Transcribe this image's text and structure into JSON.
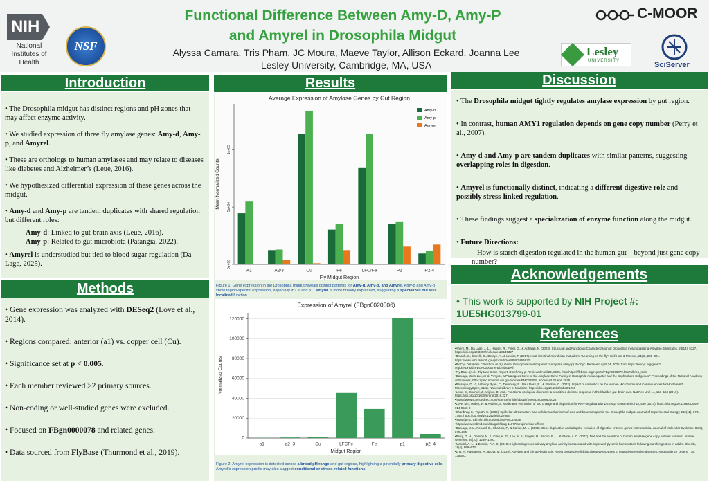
{
  "header": {
    "title": "Functional Difference Between Amy-D, Amy-P and Amyrel in Drosophila Midgut",
    "authors": "Alyssa Camara, Tris Pham, JC Moura, Maeve Taylor, Allison Eckard, Joanna Lee",
    "affiliation": "Lesley University, Cambridge, MA, USA",
    "logos": {
      "nih": "NIH",
      "nih_name": "National Institutes of Health",
      "nsf": "NSF",
      "cmoor": "C-MOOR",
      "lesley": "Lesley",
      "lesley_sub": "UNIVERSITY",
      "sciserver": "SciServer"
    }
  },
  "introduction": {
    "heading": "Introduction",
    "items": [
      "The Drosophila midgut has distinct regions and pH zones that may affect enzyme activity.",
      [
        "We studied expression of three fly amylase genes: ",
        {
          "bold": "Amy-d"
        },
        ", ",
        {
          "bold": "Amy-p"
        },
        ", and ",
        {
          "bold": "Amyrel"
        },
        "."
      ],
      "These are orthologs to human amylases and may relate to diseases like diabetes and Alzheimer’s (Leue, 2016).",
      "We hypothesized differential expression of these genes across the midgut.",
      [
        {
          "bold": "Amy-d"
        },
        " and ",
        {
          "bold": "Amy-p"
        },
        " are tandem duplicates with shared regulation but different roles:"
      ],
      [
        {
          "bold": "Amyrel"
        },
        " is understudied but tied to blood sugar regulation (Da Lage, 2025)."
      ]
    ],
    "subitems": [
      [
        {
          "bold": "Amy-d"
        },
        ": Linked to gut-brain axis (Leue, 2016)."
      ],
      [
        {
          "bold": "Amy-p"
        },
        ": Related to gut microbiota (Patangia, 2022)."
      ]
    ]
  },
  "methods": {
    "heading": "Methods",
    "items": [
      [
        "Gene expression was analyzed with ",
        {
          "bold": "DESeq2"
        },
        " (Love et al., 2014)."
      ],
      "Regions compared: anterior (a1) vs. copper cell (Cu).",
      [
        "Significance set at ",
        {
          "bold": "p < 0.005"
        },
        "."
      ],
      "Each member reviewed ≥2 primary sources.",
      "Non-coding or well-studied genes were excluded.",
      [
        "Focused on ",
        {
          "bold": "FBgn0000078"
        },
        " and related genes."
      ],
      [
        "Data sourced from ",
        {
          "bold": "FlyBase"
        },
        " (Thurmond et al., 2019)."
      ]
    ]
  },
  "results": {
    "heading": "Results",
    "captions": [
      [
        "Figure 1. Gene expression in the Drosophila midgut reveals distinct patterns for ",
        {
          "bold": "Amy-d, Amy-p, and Amyrel"
        },
        ". Amy-d and Amy-p show region-specific expression, especially in Cu and a1. ",
        {
          "bold": "Amyrel"
        },
        " is more broadly expressed, suggesting a ",
        {
          "bold": "specialized but less localized"
        },
        " function."
      ],
      [
        "Figure 2. Amyrel expression is detected across ",
        {
          "bold": "a broad pH range"
        },
        " and gut regions, highlighting a potentially ",
        {
          "bold": "primary digestive role"
        },
        ". Amyrel’s expression profile may also suggest ",
        {
          "bold": "conditional or stress-related functions"
        },
        "."
      ]
    ]
  },
  "chart_data": [
    {
      "type": "bar",
      "title": "Average Expression of Amylase Genes by Gut Region",
      "x_label": "Fly Midgut Region",
      "y_label": "Mean Normalized Counts",
      "categories": [
        "A1",
        "A2/3",
        "Cu",
        "Fe",
        "LFC/Fe",
        "P1",
        "P2-4"
      ],
      "series": [
        {
          "name": "Amy-d",
          "color": "#1b6b3a",
          "values": [
            44600,
            12500,
            114000,
            30400,
            84000,
            35100,
            9500
          ]
        },
        {
          "name": "Amy-p",
          "color": "#4cb050",
          "values": [
            54800,
            13000,
            134000,
            35100,
            114000,
            36900,
            11900
          ]
        },
        {
          "name": "Amyrel",
          "color": "#e8781e",
          "values": [
            500,
            4200,
            1000,
            12500,
            500,
            15500,
            17300
          ]
        }
      ],
      "ylim": [
        0,
        140000
      ],
      "yticks": [
        {
          "value": 0,
          "label": "0e+00"
        },
        {
          "value": 50000,
          "label": "5e+04"
        },
        {
          "value": 100000,
          "label": "1e+05"
        }
      ],
      "grid": false,
      "legend": "upper right"
    },
    {
      "type": "bar",
      "title": "Expression of Amyrel (FBgn0020506)",
      "x_label": "Midgut Region",
      "y_label": "Normalized Counts",
      "categories": [
        "a1",
        "a2_3",
        "Cu",
        "LFCFe",
        "Fe",
        "p1",
        "p2_4"
      ],
      "values": [
        200,
        600,
        800,
        45400,
        29300,
        121000,
        4200
      ],
      "color": "#3a9a5a",
      "ylim": [
        0,
        126000
      ],
      "yticks": [
        0,
        20000,
        40000,
        60000,
        80000,
        100000,
        120000
      ],
      "grid": true
    }
  ],
  "discussion": {
    "heading": "Discussion",
    "items": [
      [
        "The ",
        {
          "bold": "Drosophila midgut tightly regulates amylase expression"
        },
        " by gut region."
      ],
      [
        "In contrast, ",
        {
          "bold": "human AMY1 regulation depends on gene copy number"
        },
        " (Perry et al., 2007)."
      ],
      [
        {
          "bold": "Amy-d and Amy-p are tandem duplicates"
        },
        " with similar patterns, suggesting ",
        {
          "bold": "overlapping roles in digestion"
        },
        "."
      ],
      [
        {
          "bold": "Amyrel is functionally distinct"
        },
        ", indicating a ",
        {
          "bold": "different digestive role"
        },
        " and ",
        {
          "bold": "possibly stress-linked regulation"
        },
        "."
      ],
      [
        "These findings suggest a ",
        {
          "bold": "specialization of enzyme function"
        },
        " along the midgut."
      ],
      [
        {
          "bold": "Future Directions:"
        }
      ]
    ],
    "subitems": [
      "How is starch digestion regulated in the human gut—beyond just gene copy number?"
    ]
  },
  "acknowledgements": {
    "heading": "Acknowledgements",
    "text": [
      "This work is supported by ",
      {
        "bold": "NIH Project #: 1UE5HG013799-01"
      }
    ]
  },
  "references": {
    "heading": "References",
    "items": [
      "Ahern, M., Da Lage, J.-L., Hauser, R., Feller, G., & Aghajari, N. (2023). Structural and Functional Characterization of Drosophila melanogaster α-Amylase. Molecules, 28(14), 5327. https://doi.org/10.3390/molecules28145327",
      "Broach, S., Storelli, G., Defaye, A., & Leulier, F. (2017). Host-intestinal microbiota mutualism: “Learning on the fly”. Cell Host & Microbe, 21(3), 290–301. https://www.ncbi.nlm.nih.gov/pmc/articles/PMC5855622",
      "BioCyc Database Collection. (n.d.). Gene: Drosophila melanogaster α-Amylase (Amy-p). BioCyc. Retrieved April 24, 2025, from https://biocyc.org/gene?orgid=FLY&id=FBGN0000079#tab=showAll",
      "Fly Base. (n.d.). FlyBase Gene Report: Dmel\\Amy-p. Retrieved April 24, 2025, from https://flybase.org/reports/FBgn0000079.htm#alleles_main",
      "Da Lage, Jean-Luc, et al. “Amyrel, a Paralogous Gene of the Amylase Gene Family in Drosophila melanogaster and the Sophophora Subgenus.” Proceedings of the National Academy of Sciences, https://pmc.ncbi.nlm.nih.gov/articles/PMC22808/. Accessed 25 Apr. 2025.",
      "Patangia, D. V., Anthony Ryan, C., Dempsey, E., Paul Ross, R., & Stanton, C. (2022). Impact of Antibiotics on the Human Microbiome and Consequences for Host Health. MicrobiologyOpen, 11(1). National Library of Medicine. https://doi.org/10.1002/mbo3.1260",
      "Leue, C., Kruimel, J., Vrijens, D. et al. Functional urological disorders: a sensitized defence response in the bladder–gut–brain axis. Nat Rev Urol 14, 153–163 (2017). https://doi.org/10.1038/nrurol.2016.227",
      "https://www.sciencedirect.com/science/article/abs/pii/S0065280608601022",
      "Love, M.I., Huber, W. & Anders, S. Moderated estimation of fold change and dispersion for RNA-seq data with DESeq2. Genome Biol 15, 550 (2014). https://doi.org/10.1186/s13059-014-0550-8",
      "Shanbhag S., Tripathi S. (2009). Epithelial ultrastructure and cellular mechanisms of acid and base transport in the Drosophila midgut. Journal of Experimental Biology, 212(11), 1731–1744. https://doi.org/10.1242/jeb.027664",
      "https://pmc.ncbi.nlm.nih.gov/articles/PMC22808/",
      "https://www.webmd.com/drugs/2/drug-11377/atropine/side-effects",
      "Da Lage, J. L., Renard, E., Chartois, F., & Cariou, M. L. (2002). Gene duplication and adaptive evolution of digestive enzyme genes in Drosophila. Journal of Molecular Evolution, 54(6), 675–685.",
      "Perry, G. H., Dominy, N. J., Claw, K. G., Lee, A. S., Fiegler, H., Redon, R., ... & Stone, A. C. (2007). Diet and the evolution of human amylase gene copy number variation. Nature Genetics, 39(10), 1256–1260.",
      "Mandel, A. L., & Breslin, P. A. S. (2010). High endogenous salivary amylase activity is associated with improved glycemic homeostasis following starch ingestion in adults. Obesity, 18(4), 669–673.",
      "Zhu, Y., Hasegawa, A., & Ota, M. (2020). Amylase and the gut-brain axis: A new perspective linking digestive enzymes to neurodegenerative diseases. Neuroscience Letters, 738, 135300."
    ]
  }
}
